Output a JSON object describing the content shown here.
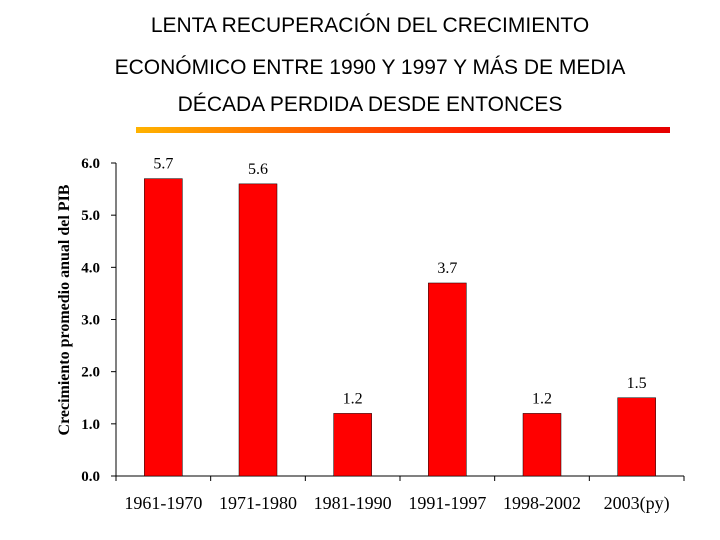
{
  "title_lines": [
    "LENTA RECUPERACIÓN DEL CRECIMIENTO",
    "ECONÓMICO ENTRE 1990 Y 1997 Y MÁS DE MEDIA",
    "DÉCADA PERDIDA DESDE ENTONCES"
  ],
  "colors": {
    "bar": "#ff0000",
    "divider_start": "#ffb300",
    "divider_end": "#e60000"
  },
  "chart_data": {
    "type": "bar",
    "title": "LENTA RECUPERACIÓN DEL CRECIMIENTO ECONÓMICO ENTRE 1990 Y 1997 Y MÁS DE MEDIA DÉCADA PERDIDA DESDE ENTONCES",
    "ylabel": "Crecimiento promedio anual del PIB",
    "xlabel": "",
    "categories": [
      "1961-1970",
      "1971-1980",
      "1981-1990",
      "1991-1997",
      "1998-2002",
      "2003(py)"
    ],
    "values": [
      5.7,
      5.6,
      1.2,
      3.7,
      1.2,
      1.5
    ],
    "value_labels": [
      "5.7",
      "5.6",
      "1.2",
      "3.7",
      "1.2",
      "1.5"
    ],
    "ylim": [
      0,
      6
    ],
    "yticks": [
      0,
      1,
      2,
      3,
      4,
      5,
      6
    ],
    "ytick_labels": [
      "0.0",
      "1.0",
      "2.0",
      "3.0",
      "4.0",
      "5.0",
      "6.0"
    ],
    "grid": false,
    "legend": "none"
  }
}
